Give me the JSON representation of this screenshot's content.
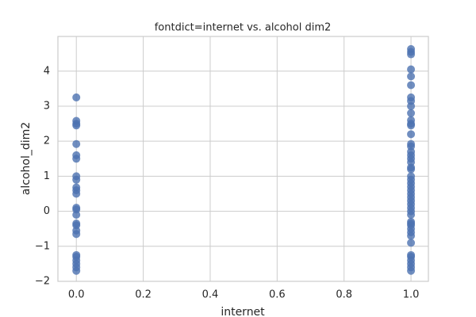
{
  "chart_data": {
    "type": "scatter",
    "title": "fontdict=internet vs. alcohol dim2",
    "xlabel": "internet",
    "ylabel": "alcohol_dim2",
    "x": [
      0,
      0,
      0,
      0,
      0,
      0,
      0,
      0,
      0,
      0,
      0,
      0,
      0,
      0,
      0,
      0,
      0,
      0,
      0,
      0,
      0,
      0,
      0,
      0,
      0,
      1,
      1,
      1,
      1,
      1,
      1,
      1,
      1,
      1,
      1,
      1,
      1,
      1,
      1,
      1,
      1,
      1,
      1,
      1,
      1,
      1,
      1,
      1,
      1,
      1,
      1,
      1,
      1,
      1,
      1,
      1,
      1,
      1,
      1,
      1,
      1,
      1,
      1,
      1,
      1,
      1,
      1,
      1,
      1,
      1,
      1,
      1
    ],
    "values": [
      3.25,
      2.58,
      2.5,
      2.45,
      1.92,
      1.6,
      1.5,
      1.0,
      0.9,
      0.68,
      0.6,
      0.5,
      0.1,
      0.05,
      -0.1,
      -0.35,
      -0.4,
      -0.55,
      -0.65,
      -1.25,
      -1.3,
      -1.4,
      -1.5,
      -1.6,
      -1.7,
      4.63,
      4.55,
      4.48,
      4.05,
      3.85,
      3.6,
      3.25,
      3.15,
      3.0,
      2.8,
      2.6,
      2.5,
      2.45,
      2.2,
      1.92,
      1.85,
      1.7,
      1.6,
      1.5,
      1.4,
      1.25,
      1.2,
      1.0,
      0.9,
      0.8,
      0.7,
      0.6,
      0.5,
      0.4,
      0.3,
      0.2,
      0.1,
      0.0,
      -0.1,
      -0.3,
      -0.35,
      -0.4,
      -0.5,
      -0.6,
      -0.7,
      -0.9,
      -1.25,
      -1.3,
      -1.4,
      -1.5,
      -1.6,
      -1.7
    ],
    "color": "#4c72b0",
    "xlim": [
      -0.055,
      1.052
    ],
    "ylim": [
      -2.0,
      4.99
    ],
    "xticks": [
      {
        "value": 0,
        "label": "0.0"
      },
      {
        "value": 0.2,
        "label": "0.2"
      },
      {
        "value": 0.4,
        "label": "0.4"
      },
      {
        "value": 0.6,
        "label": "0.6"
      },
      {
        "value": 0.8,
        "label": "0.8"
      },
      {
        "value": 1,
        "label": "1.0"
      }
    ],
    "yticks": [
      {
        "value": -2,
        "label": "−2"
      },
      {
        "value": -1,
        "label": "−1"
      },
      0,
      1,
      2,
      3,
      4
    ],
    "grid": true
  }
}
